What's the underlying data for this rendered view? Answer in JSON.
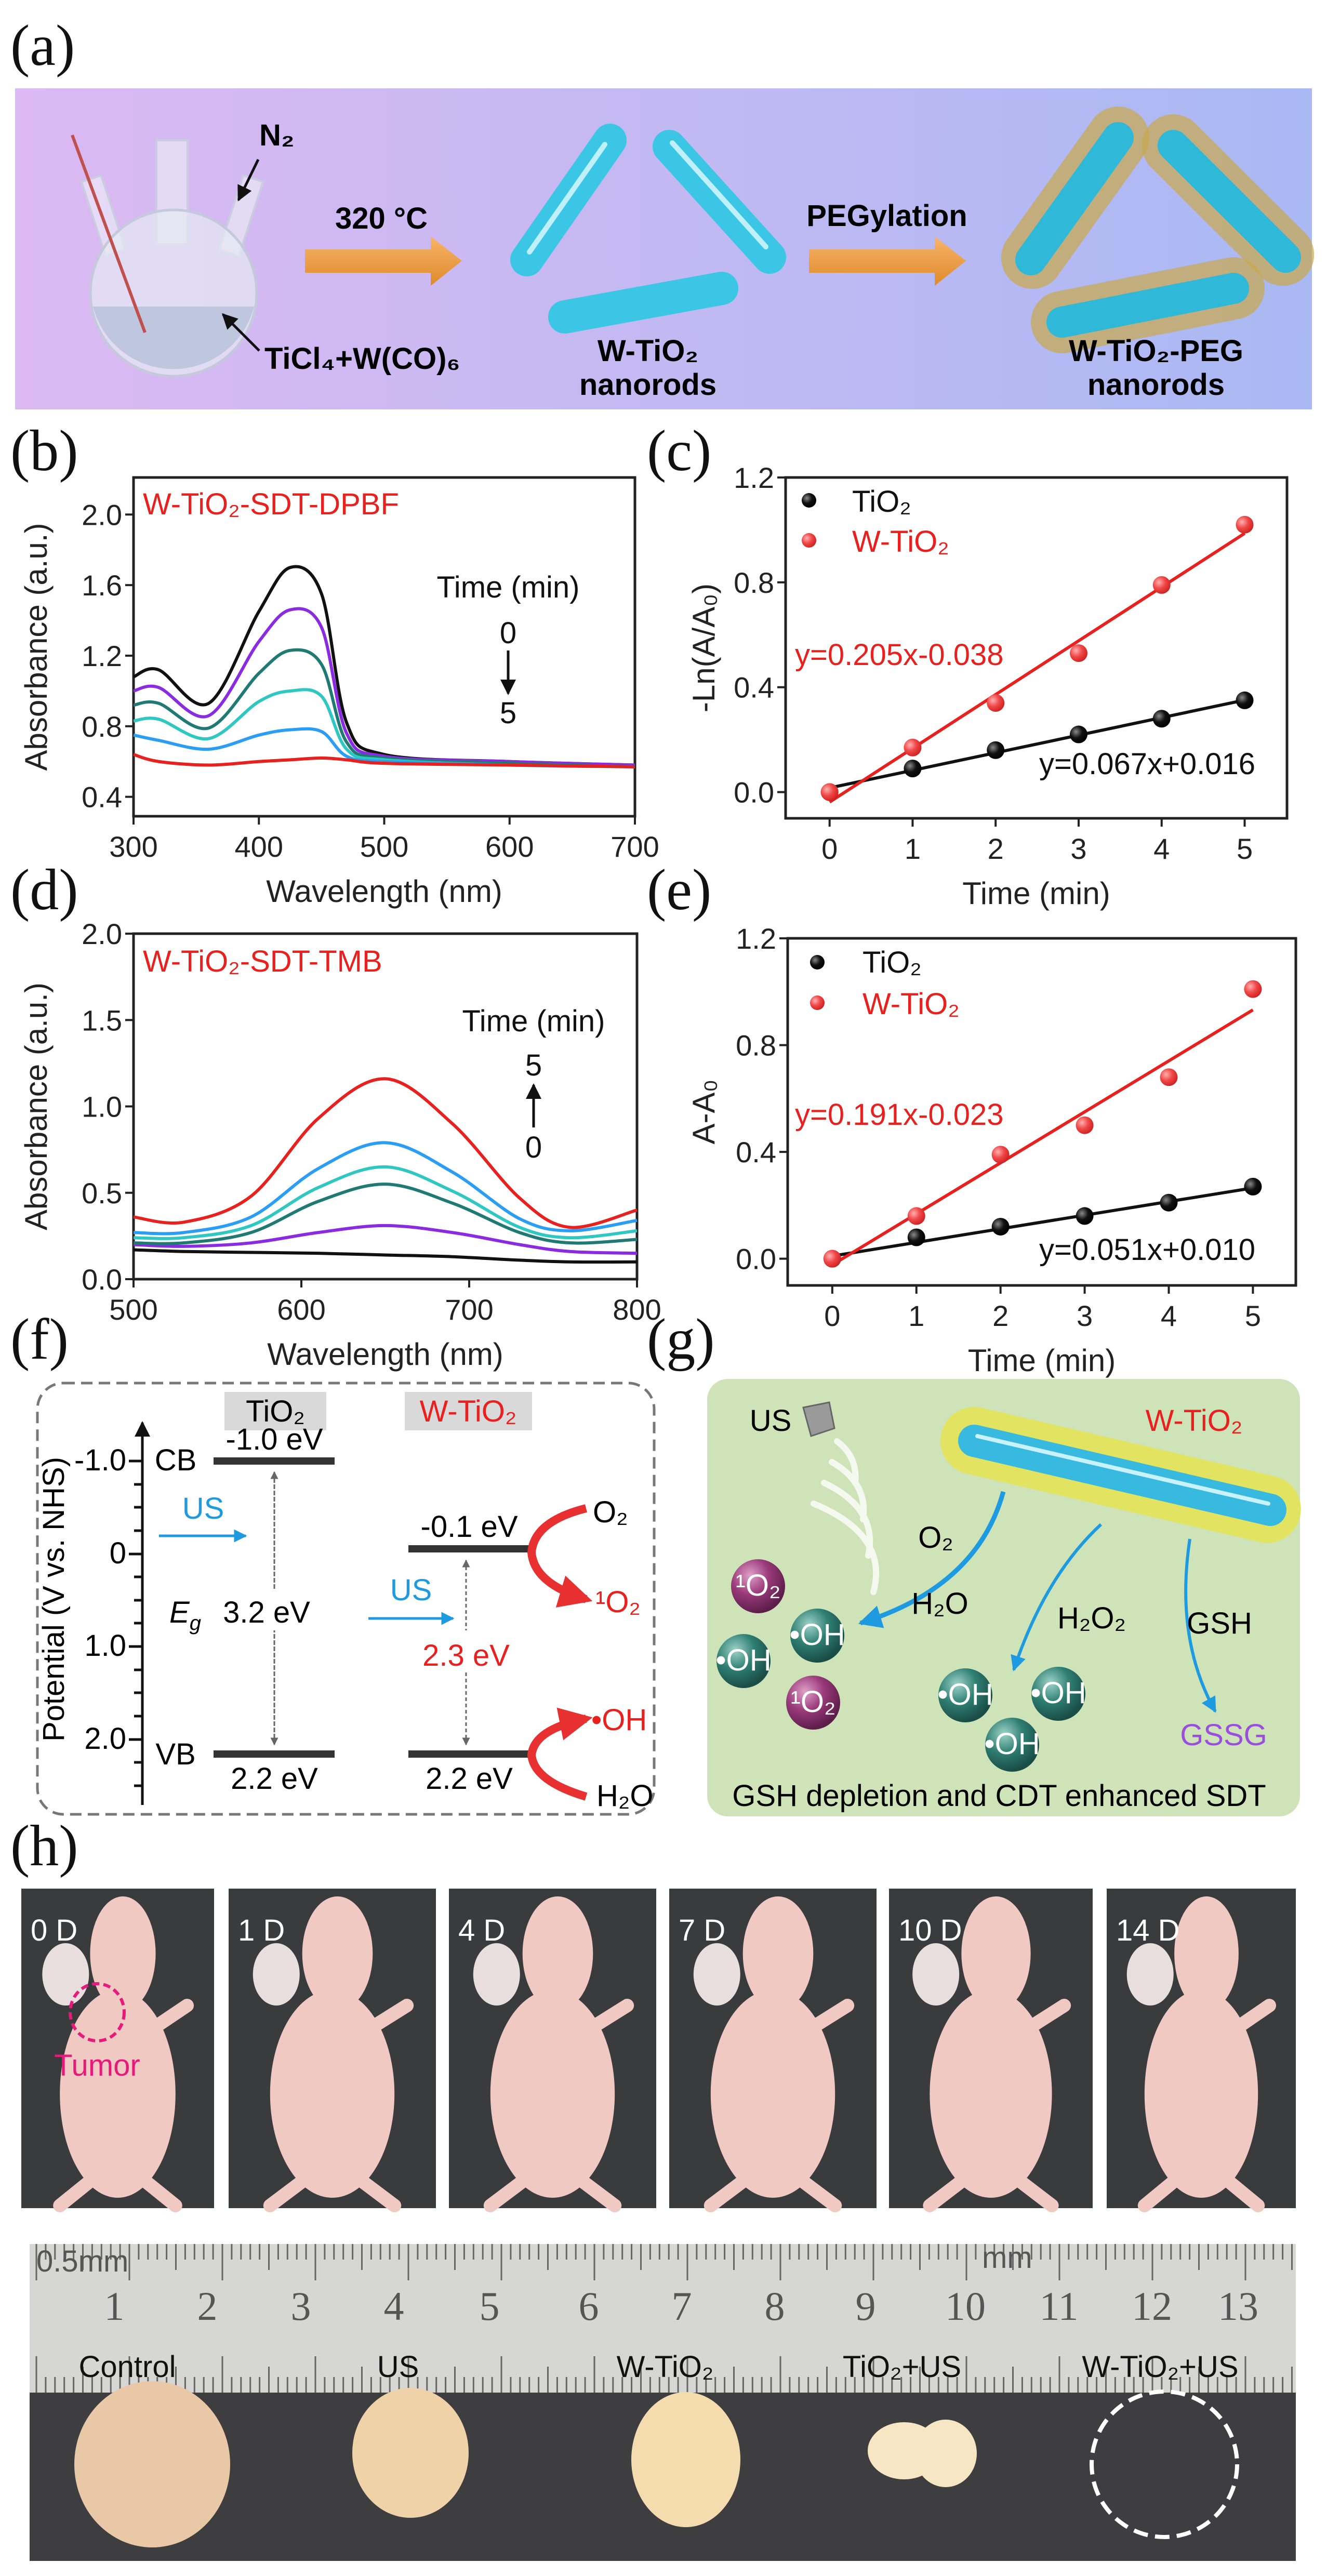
{
  "panel_labels": {
    "a": "(a)",
    "b": "(b)",
    "c": "(c)",
    "d": "(d)",
    "e": "(e)",
    "f": "(f)",
    "g": "(g)",
    "h": "(h)"
  },
  "panel_a": {
    "n2": "N₂",
    "temp": "320 °C",
    "precursor": "TiCl₄+W(CO)₆",
    "product1_line1": "W-TiO₂",
    "product1_line2": "nanorods",
    "step2": "PEGylation",
    "product2_line1": "W-TiO₂-PEG",
    "product2_line2": "nanorods"
  },
  "chart_data": [
    {
      "panel": "b",
      "type": "line",
      "title": "W-TiO₂-SDT-DPBF",
      "xlabel": "Wavelength (nm)",
      "ylabel": "Absorbance (a.u.)",
      "xlim": [
        300,
        700
      ],
      "ylim": [
        0.29,
        2.21
      ],
      "xticks": [
        300,
        400,
        500,
        600,
        700
      ],
      "yticks": [
        0.4,
        0.8,
        1.2,
        1.6,
        2.0
      ],
      "legend_title": "Time (min)",
      "arrow_from": "0",
      "arrow_to": "5",
      "x": [
        300,
        320,
        360,
        400,
        425,
        450,
        470,
        500,
        600,
        700
      ],
      "series": [
        {
          "time": 0,
          "color": "#111111",
          "values": [
            1.08,
            1.12,
            0.93,
            1.45,
            1.7,
            1.55,
            0.82,
            0.64,
            0.6,
            0.58
          ]
        },
        {
          "time": 1,
          "color": "#8a2be2",
          "values": [
            1.0,
            1.02,
            0.86,
            1.28,
            1.46,
            1.36,
            0.76,
            0.63,
            0.6,
            0.58
          ]
        },
        {
          "time": 2,
          "color": "#1f7a74",
          "values": [
            0.92,
            0.93,
            0.79,
            1.1,
            1.23,
            1.15,
            0.71,
            0.62,
            0.59,
            0.57
          ]
        },
        {
          "time": 3,
          "color": "#2fc7c2",
          "values": [
            0.83,
            0.84,
            0.73,
            0.94,
            1.0,
            0.97,
            0.67,
            0.61,
            0.58,
            0.57
          ]
        },
        {
          "time": 4,
          "color": "#2a9df4",
          "values": [
            0.75,
            0.72,
            0.67,
            0.75,
            0.78,
            0.77,
            0.63,
            0.6,
            0.58,
            0.57
          ]
        },
        {
          "time": 5,
          "color": "#e8201e",
          "values": [
            0.64,
            0.6,
            0.58,
            0.6,
            0.61,
            0.62,
            0.61,
            0.59,
            0.58,
            0.57
          ]
        }
      ]
    },
    {
      "panel": "c",
      "type": "scatter",
      "xlabel": "Time (min)",
      "ylabel": "-Ln(A/A₀)",
      "xlim": [
        -0.53,
        5.51
      ],
      "ylim": [
        -0.1,
        1.2
      ],
      "xticks": [
        0,
        1,
        2,
        3,
        4,
        5
      ],
      "yticks": [
        0.0,
        0.4,
        0.8,
        1.2
      ],
      "x": [
        0,
        1,
        2,
        3,
        4,
        5
      ],
      "series": [
        {
          "name": "TiO₂",
          "color": "#111111",
          "values": [
            0.0,
            0.09,
            0.16,
            0.22,
            0.28,
            0.35
          ],
          "fit": {
            "slope": 0.067,
            "intercept": 0.016,
            "label": "y=0.067x+0.016"
          }
        },
        {
          "name": "W-TiO₂",
          "color": "#e8201e",
          "values": [
            0.0,
            0.17,
            0.34,
            0.53,
            0.79,
            1.02
          ],
          "fit": {
            "slope": 0.205,
            "intercept": -0.038,
            "label": "y=0.205x-0.038"
          }
        }
      ],
      "legend": "top-left"
    },
    {
      "panel": "d",
      "type": "line",
      "title": "W-TiO₂-SDT-TMB",
      "xlabel": "Wavelength (nm)",
      "ylabel": "Absorbance (a.u.)",
      "xlim": [
        500,
        800
      ],
      "ylim": [
        0.0,
        2.0
      ],
      "xticks": [
        500,
        600,
        700,
        800
      ],
      "yticks": [
        0.0,
        0.5,
        1.0,
        1.5,
        2.0
      ],
      "legend_title": "Time (min)",
      "arrow_from": "0",
      "arrow_to": "5",
      "x": [
        500,
        530,
        570,
        610,
        650,
        690,
        730,
        760,
        800
      ],
      "series": [
        {
          "time": 0,
          "color": "#111111",
          "values": [
            0.17,
            0.16,
            0.155,
            0.15,
            0.14,
            0.13,
            0.11,
            0.1,
            0.1
          ]
        },
        {
          "time": 1,
          "color": "#8a2be2",
          "values": [
            0.2,
            0.19,
            0.21,
            0.27,
            0.31,
            0.27,
            0.2,
            0.16,
            0.15
          ]
        },
        {
          "time": 2,
          "color": "#1f7a74",
          "values": [
            0.21,
            0.21,
            0.27,
            0.45,
            0.55,
            0.44,
            0.27,
            0.21,
            0.23
          ]
        },
        {
          "time": 3,
          "color": "#2fc7c2",
          "values": [
            0.24,
            0.24,
            0.31,
            0.53,
            0.65,
            0.51,
            0.3,
            0.24,
            0.28
          ]
        },
        {
          "time": 4,
          "color": "#2a9df4",
          "values": [
            0.27,
            0.27,
            0.36,
            0.64,
            0.79,
            0.62,
            0.35,
            0.28,
            0.34
          ]
        },
        {
          "time": 5,
          "color": "#e8201e",
          "values": [
            0.36,
            0.33,
            0.48,
            0.93,
            1.16,
            0.9,
            0.47,
            0.3,
            0.4
          ]
        }
      ]
    },
    {
      "panel": "e",
      "type": "scatter",
      "xlabel": "Time (min)",
      "ylabel": "A-A₀",
      "xlim": [
        -0.53,
        5.51
      ],
      "ylim": [
        -0.1,
        1.2
      ],
      "xticks": [
        0,
        1,
        2,
        3,
        4,
        5
      ],
      "yticks": [
        0.0,
        0.4,
        0.8,
        1.2
      ],
      "x": [
        0,
        1,
        2,
        3,
        4,
        5
      ],
      "series": [
        {
          "name": "TiO₂",
          "color": "#111111",
          "values": [
            0.0,
            0.08,
            0.12,
            0.16,
            0.21,
            0.27
          ],
          "fit": {
            "slope": 0.051,
            "intercept": 0.01,
            "label": "y=0.051x+0.010"
          }
        },
        {
          "name": "W-TiO₂",
          "color": "#e8201e",
          "values": [
            0.0,
            0.16,
            0.39,
            0.5,
            0.68,
            1.01
          ],
          "fit": {
            "slope": 0.191,
            "intercept": -0.023,
            "label": "y=0.191x-0.023"
          }
        }
      ],
      "legend": "top-left"
    }
  ],
  "panel_f": {
    "ylabel": "Potential (V vs. NHS)",
    "yticks": [
      "-1.0",
      "0",
      "1.0",
      "2.0"
    ],
    "tio2_header": "TiO₂",
    "wtio2_header": "W-TiO₂",
    "cb": "CB",
    "vb": "VB",
    "tio2_cb": "-1.0 eV",
    "tio2_vb": "2.2 eV",
    "w_cb": "-0.1 eV",
    "w_vb": "2.2 eV",
    "us1": "US",
    "us2": "US",
    "eg_symbol": "E",
    "eg_sub": "g",
    "tio2_gap": "3.2 eV",
    "w_gap": "2.3 eV",
    "o2": "O₂",
    "singlet_o2": "¹O₂",
    "oh": "•OH",
    "h2o": "H₂O"
  },
  "panel_g": {
    "us": "US",
    "material": "W-TiO₂",
    "o2": "O₂",
    "h2o": "H₂O",
    "h2o2": "H₂O₂",
    "gsh": "GSH",
    "gssg": "GSSG",
    "singlet_o2": "¹O₂",
    "oh": "•OH",
    "caption": "GSH depletion and CDT enhanced SDT",
    "colors": {
      "background": "#cfe3b8",
      "arrow": "#1e9be0",
      "gssg": "#9b4de0"
    }
  },
  "panel_h": {
    "days": [
      "0 D",
      "1 D",
      "4 D",
      "7 D",
      "10 D",
      "14 D"
    ],
    "tumor_label": "Tumor",
    "ruler_unit_left": "0.5mm",
    "ruler_unit_right": "mm",
    "ruler_numbers": [
      "1",
      "2",
      "3",
      "4",
      "5",
      "6",
      "7",
      "8",
      "9",
      "10",
      "11",
      "12",
      "13"
    ],
    "groups": [
      "Control",
      "US",
      "W-TiO₂",
      "TiO₂+US",
      "W-TiO₂+US"
    ]
  }
}
